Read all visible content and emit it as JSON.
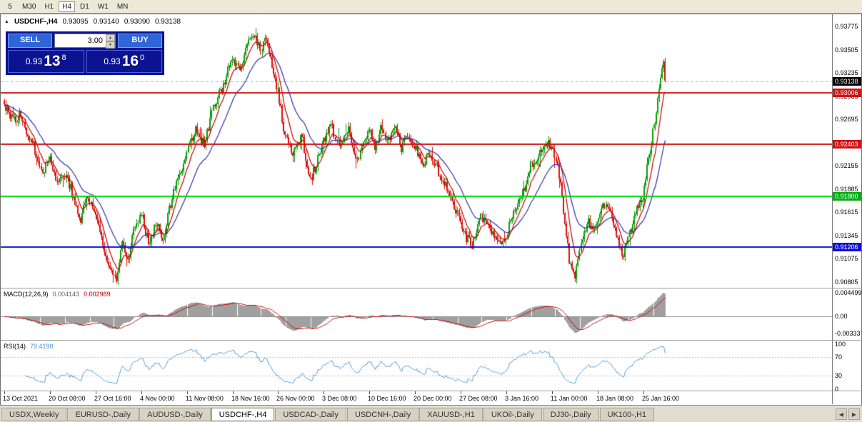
{
  "toolbar": {
    "periods": [
      "5",
      "M30",
      "H1",
      "H4",
      "D1",
      "W1",
      "MN"
    ],
    "active": "H4"
  },
  "chart": {
    "collapse_icon": "▲",
    "title_symbol": "USDCHF-,H4",
    "ohlc": {
      "open": "0.93095",
      "high": "0.93140",
      "low": "0.93090",
      "close": "0.93138"
    },
    "trade_panel": {
      "sell_label": "SELL",
      "buy_label": "BUY",
      "volume": "3.00",
      "spinner_up": "▲",
      "spinner_down": "▼",
      "sell_price": {
        "prefix": "0.93",
        "big": "13",
        "sup": "8"
      },
      "buy_price": {
        "prefix": "0.93",
        "big": "16",
        "sup": "0"
      }
    }
  },
  "price_axis": {
    "labels": [
      "0.93775",
      "0.93505",
      "0.93235",
      "0.92965",
      "0.92695",
      "0.92425",
      "0.92155",
      "0.91885",
      "0.91615",
      "0.91345",
      "0.91075",
      "0.90805"
    ],
    "badges": [
      {
        "text": "0.93138",
        "bg": "#000000"
      },
      {
        "text": "0.93006",
        "bg": "#cf1212"
      },
      {
        "text": "0.92403",
        "bg": "#cf1212"
      },
      {
        "text": "0.91800",
        "bg": "#00b011"
      },
      {
        "text": "0.91206",
        "bg": "#0f0fd6"
      }
    ]
  },
  "macd_panel": {
    "label": "MACD(12,26,9)",
    "value_main": "0.004143",
    "value_signal": "0.002989",
    "axis": [
      "0.004499",
      "0.00",
      "-0.00333"
    ]
  },
  "rsi_panel": {
    "label": "RSI(14)",
    "value": "79.4190",
    "axis": [
      "100",
      "70",
      "30",
      "0"
    ]
  },
  "tabs": {
    "scroll_left": "◀",
    "scroll_right": "▶",
    "active": "USDCHF-,H4",
    "items": [
      "USDX,Weekly",
      "EURUSD-,Daily",
      "AUDUSD-,Daily",
      "USDCHF-,H4",
      "USDCAD-,Daily",
      "USDCNH-,Daily",
      "XAUUSD-,H1",
      "UKOil-,Daily",
      "DJ30-,Daily",
      "UK100-,H1"
    ]
  },
  "chart_data": {
    "type": "candlestick",
    "symbol": "USDCHF-",
    "timeframe": "H4",
    "current": {
      "open": 0.93095,
      "high": 0.9314,
      "low": 0.9309,
      "close": 0.93138,
      "bid": 0.93138,
      "ask": 0.9316
    },
    "y_axis": {
      "top": 0.9388,
      "bottom": 0.9076
    },
    "x_labels": [
      "13 Oct 2021",
      "20 Oct 08:00",
      "27 Oct 16:00",
      "4 Nov 00:00",
      "11 Nov 08:00",
      "18 Nov 16:00",
      "26 Nov 00:00",
      "3 Dec 08:00",
      "10 Dec 16:00",
      "20 Dec 00:00",
      "27 Dec 08:00",
      "3 Jan 16:00",
      "11 Jan 00:00",
      "18 Jan 08:00",
      "25 Jan 16:00"
    ],
    "hlines": [
      {
        "price": 0.93006,
        "color": "#cf1212"
      },
      {
        "price": 0.92403,
        "color": "#cf1212"
      },
      {
        "price": 0.918,
        "color": "#00d613"
      },
      {
        "price": 0.91206,
        "color": "#0f0fd6"
      }
    ],
    "bid_line": {
      "price": 0.93138
    },
    "candles_total": 450,
    "seed": 77,
    "colors": {
      "up": "#0a9e0a",
      "down": "#dc1111",
      "ma_fast": "#c40000",
      "ma_slow": "#2f2fae",
      "macd_hist": "#a0a0a0",
      "macd_signal": "#cc0000",
      "rsi": "#4f9bd5"
    },
    "ma_periods": {
      "fast": 8,
      "slow": 24
    },
    "indicators": {
      "macd": {
        "fast": 12,
        "slow": 26,
        "signal": 9,
        "current_main": 0.004143,
        "current_signal": 0.002989
      },
      "rsi": {
        "period": 14,
        "current": 79.419,
        "levels": [
          70,
          30
        ]
      }
    },
    "path_anchors": [
      [
        0,
        0.9288
      ],
      [
        6,
        0.9268
      ],
      [
        10,
        0.9274
      ],
      [
        18,
        0.9247
      ],
      [
        26,
        0.921
      ],
      [
        31,
        0.9225
      ],
      [
        36,
        0.9195
      ],
      [
        42,
        0.9207
      ],
      [
        48,
        0.917
      ],
      [
        52,
        0.9152
      ],
      [
        56,
        0.918
      ],
      [
        62,
        0.916
      ],
      [
        68,
        0.9115
      ],
      [
        72,
        0.9095
      ],
      [
        76,
        0.9086
      ],
      [
        80,
        0.913
      ],
      [
        84,
        0.9105
      ],
      [
        88,
        0.914
      ],
      [
        93,
        0.9158
      ],
      [
        98,
        0.9128
      ],
      [
        104,
        0.915
      ],
      [
        108,
        0.9132
      ],
      [
        112,
        0.9165
      ],
      [
        118,
        0.92
      ],
      [
        124,
        0.9232
      ],
      [
        130,
        0.9258
      ],
      [
        136,
        0.924
      ],
      [
        142,
        0.9282
      ],
      [
        148,
        0.9306
      ],
      [
        155,
        0.934
      ],
      [
        160,
        0.9322
      ],
      [
        164,
        0.9353
      ],
      [
        170,
        0.9368
      ],
      [
        174,
        0.9352
      ],
      [
        178,
        0.9363
      ],
      [
        182,
        0.933
      ],
      [
        186,
        0.93
      ],
      [
        190,
        0.926
      ],
      [
        196,
        0.9228
      ],
      [
        202,
        0.9252
      ],
      [
        208,
        0.92
      ],
      [
        212,
        0.9218
      ],
      [
        217,
        0.9242
      ],
      [
        222,
        0.9262
      ],
      [
        228,
        0.9236
      ],
      [
        234,
        0.9256
      ],
      [
        240,
        0.9224
      ],
      [
        244,
        0.924
      ],
      [
        248,
        0.9258
      ],
      [
        252,
        0.9235
      ],
      [
        256,
        0.9262
      ],
      [
        260,
        0.9245
      ],
      [
        266,
        0.9258
      ],
      [
        270,
        0.9235
      ],
      [
        274,
        0.9248
      ],
      [
        279,
        0.9238
      ],
      [
        284,
        0.9218
      ],
      [
        290,
        0.9228
      ],
      [
        296,
        0.9205
      ],
      [
        302,
        0.9185
      ],
      [
        306,
        0.9168
      ],
      [
        310,
        0.915
      ],
      [
        314,
        0.9132
      ],
      [
        318,
        0.9122
      ],
      [
        324,
        0.9158
      ],
      [
        330,
        0.914
      ],
      [
        334,
        0.9128
      ],
      [
        338,
        0.912
      ],
      [
        341,
        0.9135
      ],
      [
        346,
        0.9158
      ],
      [
        352,
        0.9178
      ],
      [
        358,
        0.9215
      ],
      [
        364,
        0.9232
      ],
      [
        368,
        0.9245
      ],
      [
        372,
        0.9238
      ],
      [
        376,
        0.922
      ],
      [
        380,
        0.916
      ],
      [
        384,
        0.9105
      ],
      [
        388,
        0.9087
      ],
      [
        392,
        0.9125
      ],
      [
        396,
        0.915
      ],
      [
        400,
        0.9142
      ],
      [
        403,
        0.9155
      ],
      [
        408,
        0.9172
      ],
      [
        412,
        0.916
      ],
      [
        416,
        0.9135
      ],
      [
        420,
        0.9108
      ],
      [
        424,
        0.9128
      ],
      [
        428,
        0.9155
      ],
      [
        432,
        0.9172
      ],
      [
        434,
        0.918
      ],
      [
        437,
        0.9215
      ],
      [
        440,
        0.9245
      ],
      [
        443,
        0.9282
      ],
      [
        446,
        0.9318
      ],
      [
        448,
        0.9338
      ],
      [
        449,
        0.9314
      ]
    ]
  }
}
